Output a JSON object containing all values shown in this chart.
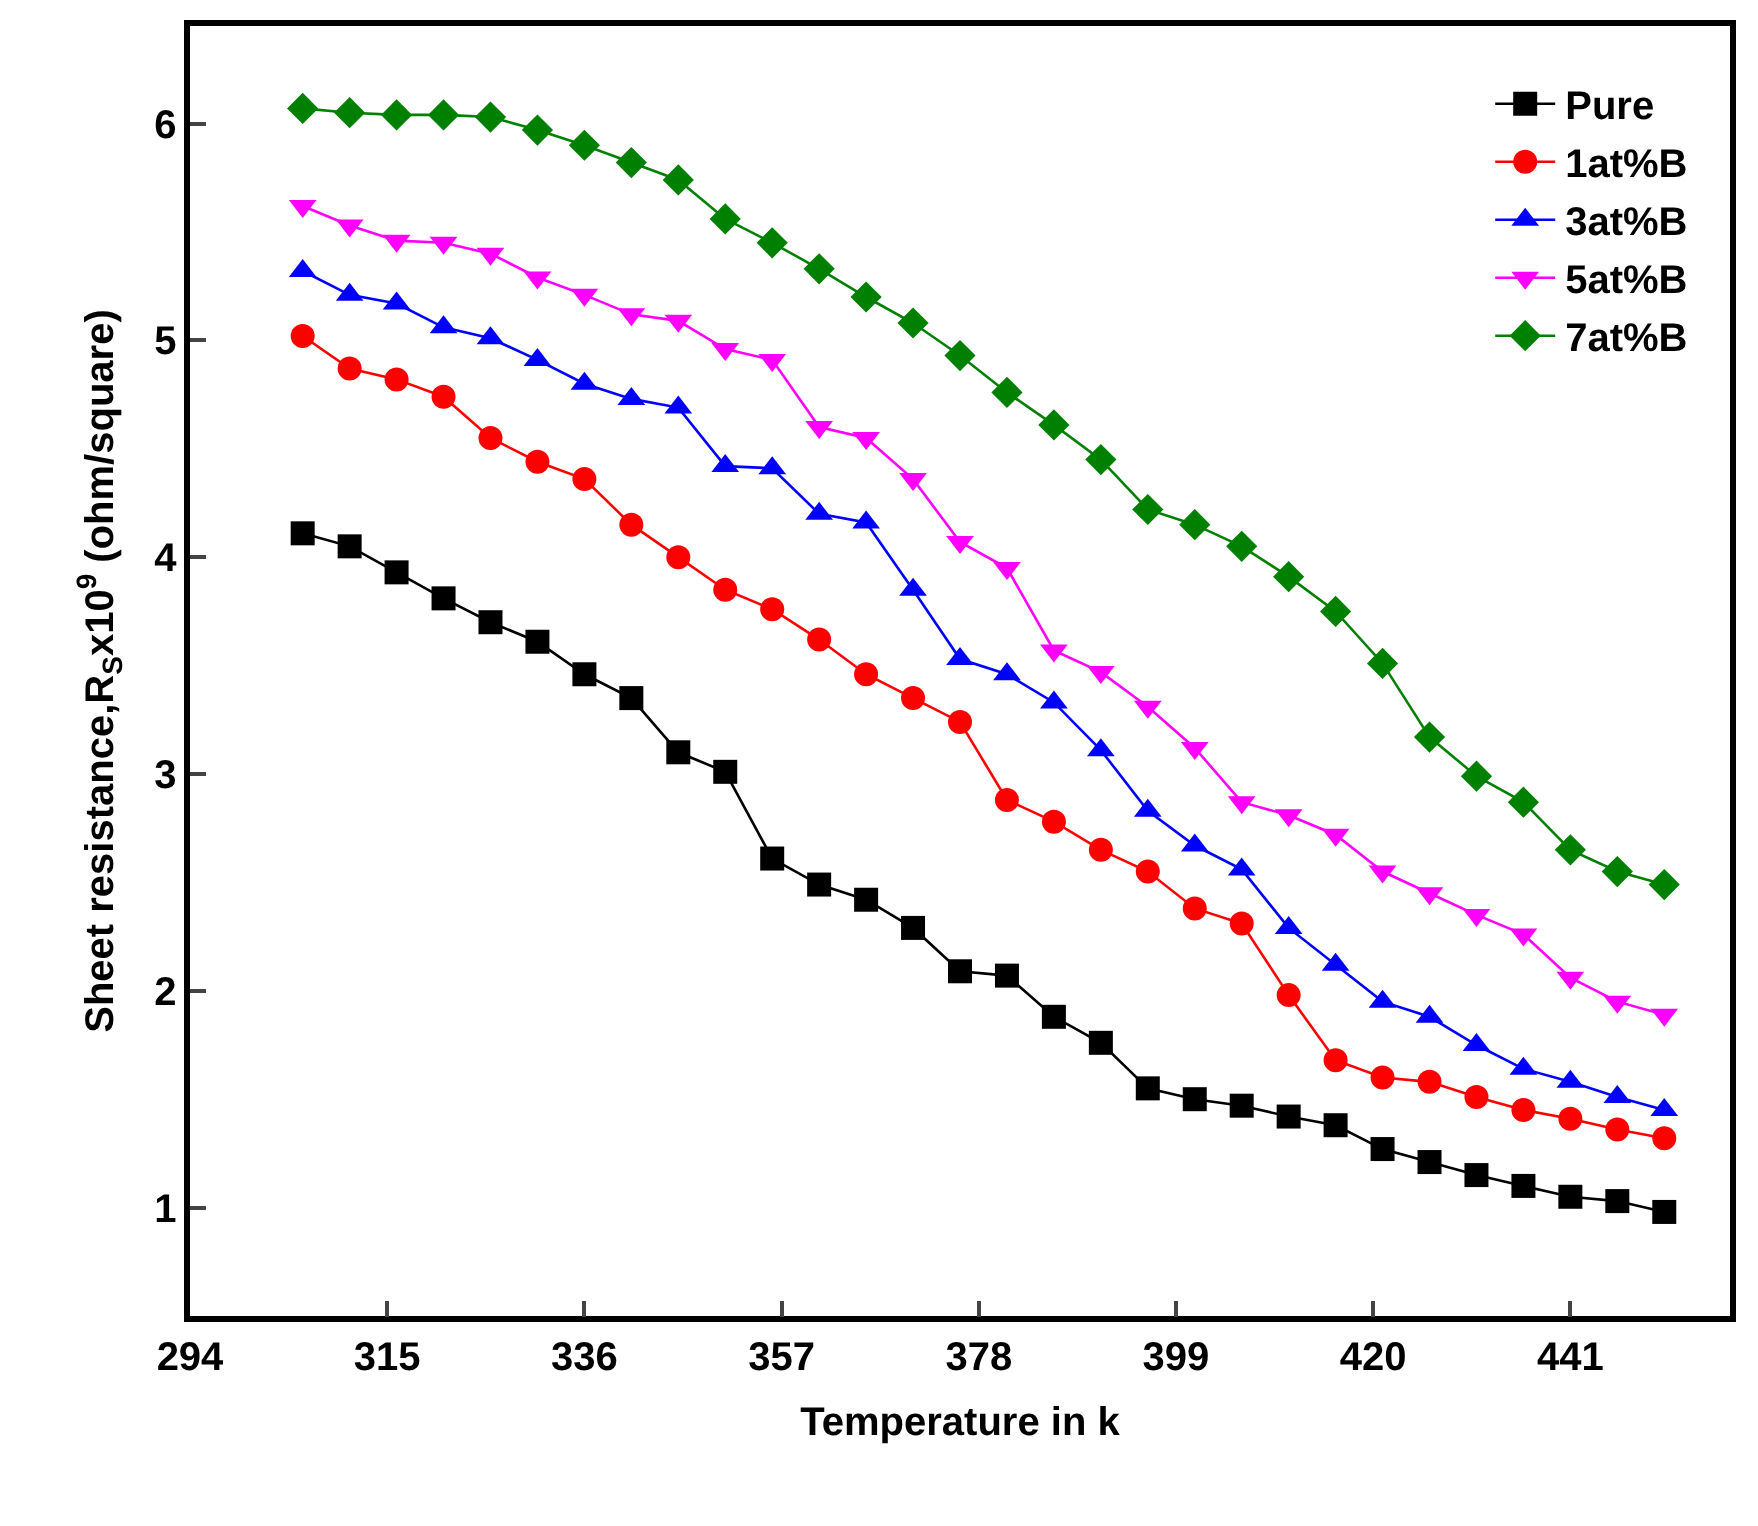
{
  "chart_data": {
    "type": "line",
    "xlabel": "Temperature in k",
    "ylabel": "Sheet resistance,R$_{S}$x10$^{9}$ (ohm/square)",
    "x": [
      306,
      311,
      316,
      321,
      326,
      331,
      336,
      341,
      346,
      351,
      356,
      361,
      366,
      371,
      376,
      381,
      386,
      391,
      396,
      401,
      406,
      411,
      416,
      421,
      426,
      431,
      436,
      441,
      446,
      451
    ],
    "xlim": [
      294,
      458
    ],
    "xticks": [
      294,
      315,
      336,
      357,
      378,
      399,
      420,
      441
    ],
    "ylim": [
      0.5,
      6.45
    ],
    "yticks": [
      1,
      2,
      3,
      4,
      5,
      6
    ],
    "legend": "top right",
    "line_style": "solid",
    "series": [
      {
        "name": "Pure",
        "color": "#000000",
        "marker": "square",
        "values": [
          4.11,
          4.05,
          3.93,
          3.81,
          3.7,
          3.61,
          3.46,
          3.35,
          3.1,
          3.01,
          2.61,
          2.49,
          2.42,
          2.29,
          2.09,
          2.07,
          1.88,
          1.76,
          1.55,
          1.5,
          1.47,
          1.42,
          1.38,
          1.27,
          1.21,
          1.15,
          1.1,
          1.05,
          1.03,
          0.98
        ]
      },
      {
        "name": "1at%B",
        "color": "#ff0000",
        "marker": "circle",
        "values": [
          5.02,
          4.87,
          4.82,
          4.74,
          4.55,
          4.44,
          4.36,
          4.15,
          4.0,
          3.85,
          3.76,
          3.62,
          3.46,
          3.35,
          3.24,
          2.88,
          2.78,
          2.65,
          2.55,
          2.38,
          2.31,
          1.98,
          1.68,
          1.6,
          1.58,
          1.51,
          1.45,
          1.41,
          1.36,
          1.32
        ]
      },
      {
        "name": "3at%B",
        "color": "#0000ff",
        "marker": "triangle",
        "values": [
          5.32,
          5.21,
          5.17,
          5.06,
          5.01,
          4.91,
          4.8,
          4.73,
          4.69,
          4.42,
          4.41,
          4.2,
          4.16,
          3.85,
          3.53,
          3.46,
          3.33,
          3.11,
          2.83,
          2.67,
          2.56,
          2.29,
          2.12,
          1.95,
          1.88,
          1.75,
          1.64,
          1.58,
          1.51,
          1.45
        ]
      },
      {
        "name": "5at%B",
        "color": "#ff00ff",
        "marker": "triangle-down",
        "values": [
          5.62,
          5.53,
          5.46,
          5.45,
          5.4,
          5.29,
          5.21,
          5.12,
          5.09,
          4.96,
          4.91,
          4.6,
          4.55,
          4.36,
          4.07,
          3.95,
          3.57,
          3.47,
          3.31,
          3.12,
          2.87,
          2.81,
          2.72,
          2.55,
          2.45,
          2.35,
          2.26,
          2.06,
          1.95,
          1.89
        ]
      },
      {
        "name": "7at%B",
        "color": "#008000",
        "marker": "diamond",
        "values": [
          6.07,
          6.05,
          6.04,
          6.04,
          6.03,
          5.97,
          5.9,
          5.82,
          5.74,
          5.56,
          5.45,
          5.33,
          5.2,
          5.08,
          4.93,
          4.76,
          4.61,
          4.45,
          4.22,
          4.15,
          4.05,
          3.91,
          3.75,
          3.51,
          3.17,
          2.99,
          2.87,
          2.65,
          2.55,
          2.49
        ]
      }
    ]
  }
}
